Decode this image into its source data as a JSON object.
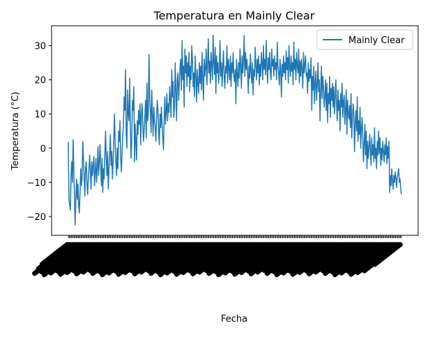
{
  "chart_data": {
    "type": "line",
    "title": "Temperatura en Mainly Clear",
    "xlabel": "Fecha",
    "ylabel": "Temperatura (°C)",
    "ylim": [
      -25.5,
      35.8
    ],
    "yticks": [
      -20,
      -10,
      0,
      10,
      20,
      30
    ],
    "grid": false,
    "legend_position": "top-right",
    "x_tick_labels_note": "dense overlapping rotated date labels",
    "series": [
      {
        "name": "Mainly Clear",
        "color": "#1f77b4",
        "values": [
          1.8,
          -15.0,
          -16.5,
          -18.2,
          -8.0,
          -4.0,
          -10.0,
          2.5,
          -6.0,
          -15.0,
          -22.5,
          -14.0,
          -9.0,
          -15.0,
          -10.5,
          -16.5,
          -19.0,
          -13.0,
          -6.0,
          -11.0,
          -9.0,
          2.0,
          -3.0,
          -8.5,
          -14.0,
          -6.0,
          -4.0,
          -10.0,
          -13.5,
          -9.0,
          -6.0,
          -2.0,
          -7.0,
          -12.0,
          -4.0,
          -8.0,
          -5.0,
          -2.5,
          -11.0,
          -7.0,
          -3.0,
          -10.0,
          -6.0,
          0.5,
          -8.0,
          -4.0,
          1.0,
          -5.0,
          -11.0,
          -3.0,
          -13.0,
          -6.0,
          -9.0,
          -2.0,
          5.0,
          -3.0,
          -8.0,
          -1.0,
          -12.0,
          -6.0,
          -2.0,
          4.0,
          -5.0,
          -1.0,
          -9.0,
          -4.0,
          3.0,
          10.0,
          1.0,
          -4.0,
          -8.0,
          0.0,
          -6.0,
          5.0,
          2.0,
          8.0,
          -3.0,
          -7.0,
          -1.0,
          4.0,
          7.0,
          15.0,
          11.0,
          23.0,
          4.0,
          0.0,
          17.0,
          10.0,
          8.0,
          20.5,
          6.0,
          -3.0,
          2.0,
          14.0,
          11.0,
          18.0,
          -4.0,
          7.0,
          2.0,
          -3.5,
          8.0,
          4.0,
          11.0,
          7.0,
          13.0,
          1.0,
          9.0,
          13.0,
          7.5,
          2.0,
          5.0,
          9.0,
          14.0,
          3.0,
          19.0,
          8.0,
          10.0,
          27.5,
          15.0,
          11.0,
          4.5,
          17.0,
          10.0,
          3.5,
          12.0,
          8.0,
          6.0,
          2.0,
          9.0,
          14.0,
          11.0,
          5.0,
          1.0,
          10.0,
          6.0,
          12.0,
          7.0,
          3.0,
          -0.5,
          9.0,
          15.0,
          7.0,
          11.0,
          16.0,
          8.0,
          13.0,
          10.5,
          18.0,
          14.0,
          9.0,
          23.0,
          15.0,
          19.5,
          9.0,
          12.0,
          25.0,
          17.0,
          8.0,
          20.0,
          22.0,
          14.0,
          19.0,
          23.5,
          26.0,
          17.0,
          31.5,
          20.0,
          24.0,
          12.0,
          29.0,
          22.0,
          27.0,
          18.0,
          25.0,
          21.0,
          28.0,
          16.5,
          24.0,
          20.0,
          30.0,
          26.0,
          18.0,
          22.0,
          15.0,
          27.0,
          21.0,
          13.5,
          23.0,
          19.0,
          16.0,
          25.0,
          19.0,
          24.0,
          17.0,
          28.0,
          20.0,
          14.0,
          26.0,
          21.0,
          23.5,
          29.0,
          18.5,
          24.0,
          32.0,
          22.0,
          25.5,
          19.0,
          28.0,
          24.0,
          20.0,
          33.0,
          25.0,
          21.5,
          29.5,
          16.0,
          27.0,
          22.0,
          25.0,
          19.0,
          23.0,
          31.5,
          21.0,
          25.0,
          18.0,
          24.0,
          28.5,
          21.0,
          17.5,
          24.0,
          22.0,
          30.0,
          19.0,
          26.0,
          23.5,
          20.0,
          27.0,
          18.0,
          25.0,
          22.0,
          28.0,
          21.0,
          19.5,
          23.0,
          13.0,
          26.0,
          22.0,
          18.0,
          25.0,
          20.5,
          29.0,
          24.0,
          17.5,
          27.0,
          22.0,
          25.5,
          33.0,
          21.0,
          28.0,
          23.0,
          26.0,
          22.0,
          16.0,
          24.0,
          20.5,
          27.5,
          22.5,
          19.0,
          25.0,
          15.5,
          23.0,
          21.0,
          29.5,
          24.0,
          20.0,
          26.0,
          22.0,
          27.0,
          18.5,
          24.5,
          21.0,
          28.0,
          25.0,
          20.0,
          30.0,
          23.0,
          26.0,
          21.5,
          31.5,
          24.0,
          19.0,
          26.5,
          23.0,
          28.0,
          22.0,
          20.0,
          29.0,
          24.0,
          26.0,
          21.0,
          27.0,
          23.0,
          25.0,
          20.0,
          31.0,
          24.0,
          22.0,
          18.5,
          26.0,
          23.0,
          15.0,
          24.5,
          21.0,
          27.0,
          22.0,
          25.0,
          20.0,
          28.5,
          23.0,
          26.5,
          19.0,
          30.0,
          24.0,
          21.0,
          27.0,
          22.5,
          25.0,
          18.5,
          31.0,
          23.0,
          26.0,
          20.0,
          28.0,
          24.0,
          22.0,
          29.0,
          19.0,
          25.5,
          21.0,
          26.0,
          23.0,
          17.5,
          28.0,
          22.0,
          24.5,
          27.0,
          21.0,
          22.0,
          16.0,
          25.0,
          19.5,
          23.0,
          20.5,
          26.5,
          11.0,
          21.0,
          17.0,
          24.0,
          13.0,
          19.0,
          22.5,
          14.0,
          18.5,
          25.0,
          16.5,
          20.0,
          8.0,
          17.0,
          24.0,
          14.5,
          21.0,
          18.0,
          12.0,
          15.0,
          20.0,
          11.0,
          19.0,
          7.5,
          16.0,
          13.0,
          21.0,
          9.0,
          17.5,
          14.0,
          19.0,
          12.0,
          18.0,
          10.0,
          15.0,
          20.0,
          13.0,
          8.0,
          17.0,
          11.0,
          14.0,
          5.0,
          16.0,
          12.0,
          19.0,
          9.0,
          13.5,
          15.5,
          7.0,
          11.0,
          17.0,
          4.0,
          14.0,
          10.0,
          8.5,
          12.5,
          6.0,
          16.0,
          3.0,
          9.0,
          13.0,
          10.0,
          -1.0,
          7.0,
          11.0,
          5.0,
          15.0,
          2.0,
          8.0,
          4.0,
          12.0,
          0.0,
          6.0,
          9.0,
          3.0,
          -4.0,
          1.0,
          7.0,
          -2.0,
          5.0,
          -6.0,
          2.0,
          -3.0,
          0.0,
          4.0,
          -1.0,
          -5.0,
          3.0,
          -2.0,
          1.0,
          -4.0,
          6.0,
          -3.0,
          0.0,
          -6.0,
          2.0,
          -2.0,
          5.0,
          -1.5,
          3.0,
          -5.0,
          0.0,
          -3.5,
          2.0,
          -1.0,
          -4.0,
          1.0,
          -2.0,
          3.0,
          -4.5,
          0.5,
          -3.0,
          2.0,
          -13.0,
          -8.0,
          -11.0,
          -6.0,
          -9.5,
          -12.0,
          -8.0,
          -10.0,
          -7.0,
          -9.0,
          -11.5,
          -8.5,
          -7.5,
          -6.0,
          -10.0,
          -9.0,
          -12.0,
          -13.5
        ]
      }
    ]
  }
}
